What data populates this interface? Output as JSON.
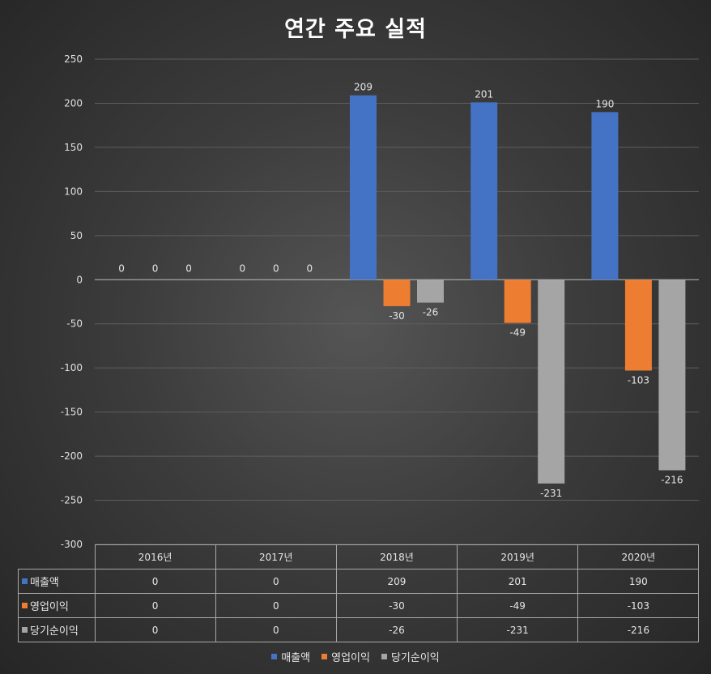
{
  "chart_data": {
    "type": "bar",
    "title": "연간 주요 실적",
    "categories": [
      "2016년",
      "2017년",
      "2018년",
      "2019년",
      "2020년"
    ],
    "series": [
      {
        "name": "매출액",
        "values": [
          0,
          0,
          209,
          201,
          190
        ],
        "color": "#4472c4"
      },
      {
        "name": "영업이익",
        "values": [
          0,
          0,
          -30,
          -49,
          -103
        ],
        "color": "#ed7d31"
      },
      {
        "name": "당기순이익",
        "values": [
          0,
          0,
          -26,
          -231,
          -216
        ],
        "color": "#a5a5a5"
      }
    ],
    "ylim": [
      -300,
      250
    ],
    "ytick_step": 50,
    "grid": true,
    "legend": "bottom",
    "data_table": true
  }
}
